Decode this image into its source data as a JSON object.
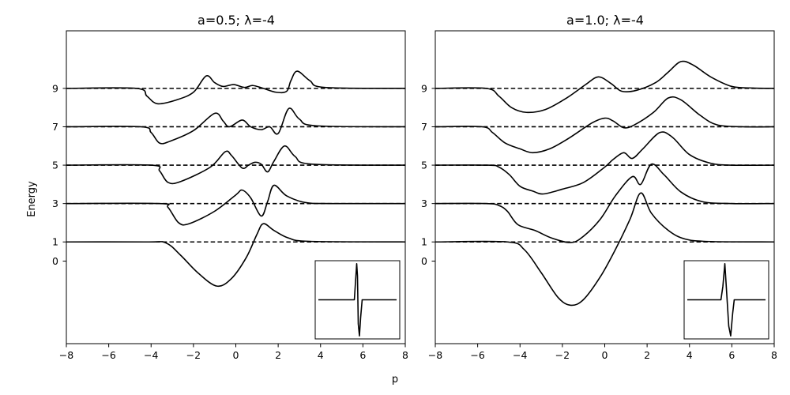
{
  "figure": {
    "xlabel": "p",
    "ylabel": "Energy"
  },
  "chart_data": [
    {
      "type": "line",
      "title": "a=0.5; λ=-4",
      "xlabel": "p",
      "ylabel": "Energy",
      "xlim": [
        -8,
        8
      ],
      "ylim": [
        -4.3,
        12
      ],
      "x_ticks": [
        -8,
        -6,
        -4,
        -2,
        0,
        2,
        4,
        6,
        8
      ],
      "x_tick_labels": [
        "−8",
        "−6",
        "−4",
        "−2",
        "0",
        "2",
        "4",
        "6",
        "8"
      ],
      "y_ticks": [
        0,
        1,
        3,
        5,
        7,
        9
      ],
      "y_tick_labels": [
        "0",
        "1",
        "3",
        "5",
        "7",
        "9"
      ],
      "reference_levels": [
        1,
        3,
        5,
        7,
        9
      ],
      "reference_style": "dashed",
      "grid": false,
      "series": [
        {
          "level": 1,
          "points": [
            [
              -8,
              1
            ],
            [
              -4.2,
              1
            ],
            [
              -3.3,
              0.95
            ],
            [
              -2.6,
              0.3
            ],
            [
              -1.8,
              -0.6
            ],
            [
              -0.9,
              -1.3
            ],
            [
              -0.2,
              -0.9
            ],
            [
              0.5,
              0.2
            ],
            [
              1.0,
              1.4
            ],
            [
              1.3,
              1.95
            ],
            [
              1.8,
              1.6
            ],
            [
              2.5,
              1.2
            ],
            [
              3.5,
              1.03
            ],
            [
              8,
              1
            ]
          ]
        },
        {
          "level": 3,
          "points": [
            [
              -8,
              3
            ],
            [
              -3.6,
              3
            ],
            [
              -3.2,
              2.8
            ],
            [
              -2.7,
              2.0
            ],
            [
              -2.2,
              1.95
            ],
            [
              -1.0,
              2.6
            ],
            [
              0.0,
              3.45
            ],
            [
              0.3,
              3.7
            ],
            [
              0.7,
              3.3
            ],
            [
              1.2,
              2.35
            ],
            [
              1.5,
              3.1
            ],
            [
              1.8,
              3.95
            ],
            [
              2.4,
              3.4
            ],
            [
              3.3,
              3.05
            ],
            [
              4.5,
              3
            ],
            [
              8,
              3
            ]
          ]
        },
        {
          "level": 5,
          "points": [
            [
              -8,
              5
            ],
            [
              -4.0,
              5
            ],
            [
              -3.6,
              4.7
            ],
            [
              -3.2,
              4.1
            ],
            [
              -2.6,
              4.15
            ],
            [
              -1.2,
              4.9
            ],
            [
              -0.5,
              5.7
            ],
            [
              -0.2,
              5.5
            ],
            [
              0.3,
              4.85
            ],
            [
              0.6,
              5.0
            ],
            [
              0.9,
              5.15
            ],
            [
              1.2,
              5.05
            ],
            [
              1.5,
              4.65
            ],
            [
              1.8,
              5.2
            ],
            [
              2.3,
              6.0
            ],
            [
              2.8,
              5.45
            ],
            [
              3.6,
              5.05
            ],
            [
              8,
              5
            ]
          ]
        },
        {
          "level": 7,
          "points": [
            [
              -8,
              7
            ],
            [
              -4.5,
              7
            ],
            [
              -4.0,
              6.7
            ],
            [
              -3.6,
              6.15
            ],
            [
              -3.1,
              6.25
            ],
            [
              -2.0,
              6.8
            ],
            [
              -1.0,
              7.7
            ],
            [
              -0.6,
              7.3
            ],
            [
              -0.3,
              7.0
            ],
            [
              0.3,
              7.35
            ],
            [
              0.7,
              7.0
            ],
            [
              1.2,
              6.85
            ],
            [
              1.6,
              7.0
            ],
            [
              2.0,
              6.65
            ],
            [
              2.5,
              7.95
            ],
            [
              3.0,
              7.4
            ],
            [
              3.8,
              7.05
            ],
            [
              8,
              7
            ]
          ]
        },
        {
          "level": 9,
          "points": [
            [
              -8,
              9
            ],
            [
              -4.7,
              9
            ],
            [
              -4.2,
              8.6
            ],
            [
              -3.7,
              8.2
            ],
            [
              -2.8,
              8.4
            ],
            [
              -2.0,
              8.8
            ],
            [
              -1.4,
              9.65
            ],
            [
              -1.0,
              9.3
            ],
            [
              -0.6,
              9.1
            ],
            [
              -0.1,
              9.2
            ],
            [
              0.4,
              9.05
            ],
            [
              0.8,
              9.15
            ],
            [
              1.3,
              9.0
            ],
            [
              1.9,
              8.8
            ],
            [
              2.4,
              8.85
            ],
            [
              2.6,
              9.4
            ],
            [
              2.9,
              9.9
            ],
            [
              3.5,
              9.4
            ],
            [
              4.2,
              9.05
            ],
            [
              8,
              9
            ]
          ]
        }
      ]
    },
    {
      "type": "line",
      "title": "a=1.0; λ=-4",
      "xlabel": "p",
      "ylabel": "Energy",
      "xlim": [
        -8,
        8
      ],
      "ylim": [
        -4.3,
        12
      ],
      "x_ticks": [
        -8,
        -6,
        -4,
        -2,
        0,
        2,
        4,
        6,
        8
      ],
      "x_tick_labels": [
        "−8",
        "−6",
        "−4",
        "−2",
        "0",
        "2",
        "4",
        "6",
        "8"
      ],
      "y_ticks": [
        0,
        1,
        3,
        5,
        7,
        9
      ],
      "y_tick_labels": [
        "0",
        "1",
        "3",
        "5",
        "7",
        "9"
      ],
      "reference_levels": [
        1,
        3,
        5,
        7,
        9
      ],
      "reference_style": "dashed",
      "grid": false,
      "series": [
        {
          "level": 1,
          "points": [
            [
              -8,
              1
            ],
            [
              -4.6,
              1
            ],
            [
              -3.8,
              0.6
            ],
            [
              -3.0,
              -0.6
            ],
            [
              -2.2,
              -1.9
            ],
            [
              -1.6,
              -2.3
            ],
            [
              -1.0,
              -2.0
            ],
            [
              -0.2,
              -0.8
            ],
            [
              0.5,
              0.6
            ],
            [
              1.2,
              2.2
            ],
            [
              1.7,
              3.55
            ],
            [
              2.2,
              2.5
            ],
            [
              3.0,
              1.6
            ],
            [
              3.8,
              1.15
            ],
            [
              5.0,
              1.02
            ],
            [
              8,
              1
            ]
          ]
        },
        {
          "level": 3,
          "points": [
            [
              -8,
              3
            ],
            [
              -5.6,
              3
            ],
            [
              -5.0,
              2.9
            ],
            [
              -4.6,
              2.6
            ],
            [
              -4.1,
              1.9
            ],
            [
              -3.3,
              1.6
            ],
            [
              -2.5,
              1.2
            ],
            [
              -1.6,
              0.97
            ],
            [
              -1.0,
              1.3
            ],
            [
              -0.2,
              2.2
            ],
            [
              0.5,
              3.4
            ],
            [
              1.3,
              4.4
            ],
            [
              1.7,
              4.0
            ],
            [
              2.2,
              5.05
            ],
            [
              2.8,
              4.5
            ],
            [
              3.6,
              3.6
            ],
            [
              4.6,
              3.1
            ],
            [
              6.0,
              3
            ],
            [
              8,
              3
            ]
          ]
        },
        {
          "level": 5,
          "points": [
            [
              -8,
              5
            ],
            [
              -5.5,
              5
            ],
            [
              -5.0,
              4.9
            ],
            [
              -4.5,
              4.5
            ],
            [
              -4.0,
              3.9
            ],
            [
              -3.4,
              3.65
            ],
            [
              -2.9,
              3.5
            ],
            [
              -2.0,
              3.75
            ],
            [
              -1.0,
              4.1
            ],
            [
              0.0,
              4.9
            ],
            [
              0.4,
              5.3
            ],
            [
              0.9,
              5.65
            ],
            [
              1.3,
              5.35
            ],
            [
              1.8,
              5.85
            ],
            [
              2.6,
              6.7
            ],
            [
              3.2,
              6.45
            ],
            [
              4.0,
              5.55
            ],
            [
              5.0,
              5.1
            ],
            [
              6.0,
              5
            ],
            [
              8,
              5
            ]
          ]
        },
        {
          "level": 7,
          "points": [
            [
              -8,
              7
            ],
            [
              -5.8,
              7
            ],
            [
              -5.3,
              6.7
            ],
            [
              -4.7,
              6.15
            ],
            [
              -4.0,
              5.85
            ],
            [
              -3.4,
              5.65
            ],
            [
              -2.6,
              5.85
            ],
            [
              -1.7,
              6.4
            ],
            [
              -0.6,
              7.2
            ],
            [
              0.0,
              7.45
            ],
            [
              0.4,
              7.3
            ],
            [
              0.9,
              6.95
            ],
            [
              1.4,
              7.1
            ],
            [
              2.3,
              7.75
            ],
            [
              3.0,
              8.5
            ],
            [
              3.6,
              8.4
            ],
            [
              4.5,
              7.6
            ],
            [
              5.3,
              7.1
            ],
            [
              6.5,
              7
            ],
            [
              8,
              7
            ]
          ]
        },
        {
          "level": 9,
          "points": [
            [
              -8,
              9
            ],
            [
              -5.6,
              9
            ],
            [
              -5.0,
              8.6
            ],
            [
              -4.4,
              8.0
            ],
            [
              -3.7,
              7.75
            ],
            [
              -2.8,
              7.9
            ],
            [
              -1.8,
              8.5
            ],
            [
              -0.9,
              9.2
            ],
            [
              -0.3,
              9.6
            ],
            [
              0.3,
              9.25
            ],
            [
              0.8,
              8.85
            ],
            [
              1.5,
              8.9
            ],
            [
              2.4,
              9.3
            ],
            [
              3.0,
              9.85
            ],
            [
              3.6,
              10.4
            ],
            [
              4.2,
              10.2
            ],
            [
              5.0,
              9.6
            ],
            [
              6.0,
              9.1
            ],
            [
              7.0,
              9.02
            ],
            [
              8,
              9
            ]
          ]
        }
      ],
      "inset": "waveform"
    }
  ],
  "insets": [
    {
      "points": [
        [
          -5,
          0
        ],
        [
          -0.4,
          0
        ],
        [
          -0.25,
          2.4
        ],
        [
          -0.1,
          4.8
        ],
        [
          0.0,
          3.2
        ],
        [
          0.1,
          -3.2
        ],
        [
          0.25,
          -4.8
        ],
        [
          0.4,
          -2.4
        ],
        [
          0.6,
          0
        ],
        [
          5,
          0
        ]
      ]
    },
    {
      "points": [
        [
          -5,
          0
        ],
        [
          -0.7,
          0
        ],
        [
          -0.45,
          1.8
        ],
        [
          -0.2,
          4.8
        ],
        [
          0.0,
          1.5
        ],
        [
          0.3,
          -3.5
        ],
        [
          0.55,
          -4.8
        ],
        [
          0.8,
          -1.8
        ],
        [
          1.0,
          0
        ],
        [
          5,
          0
        ]
      ]
    }
  ]
}
